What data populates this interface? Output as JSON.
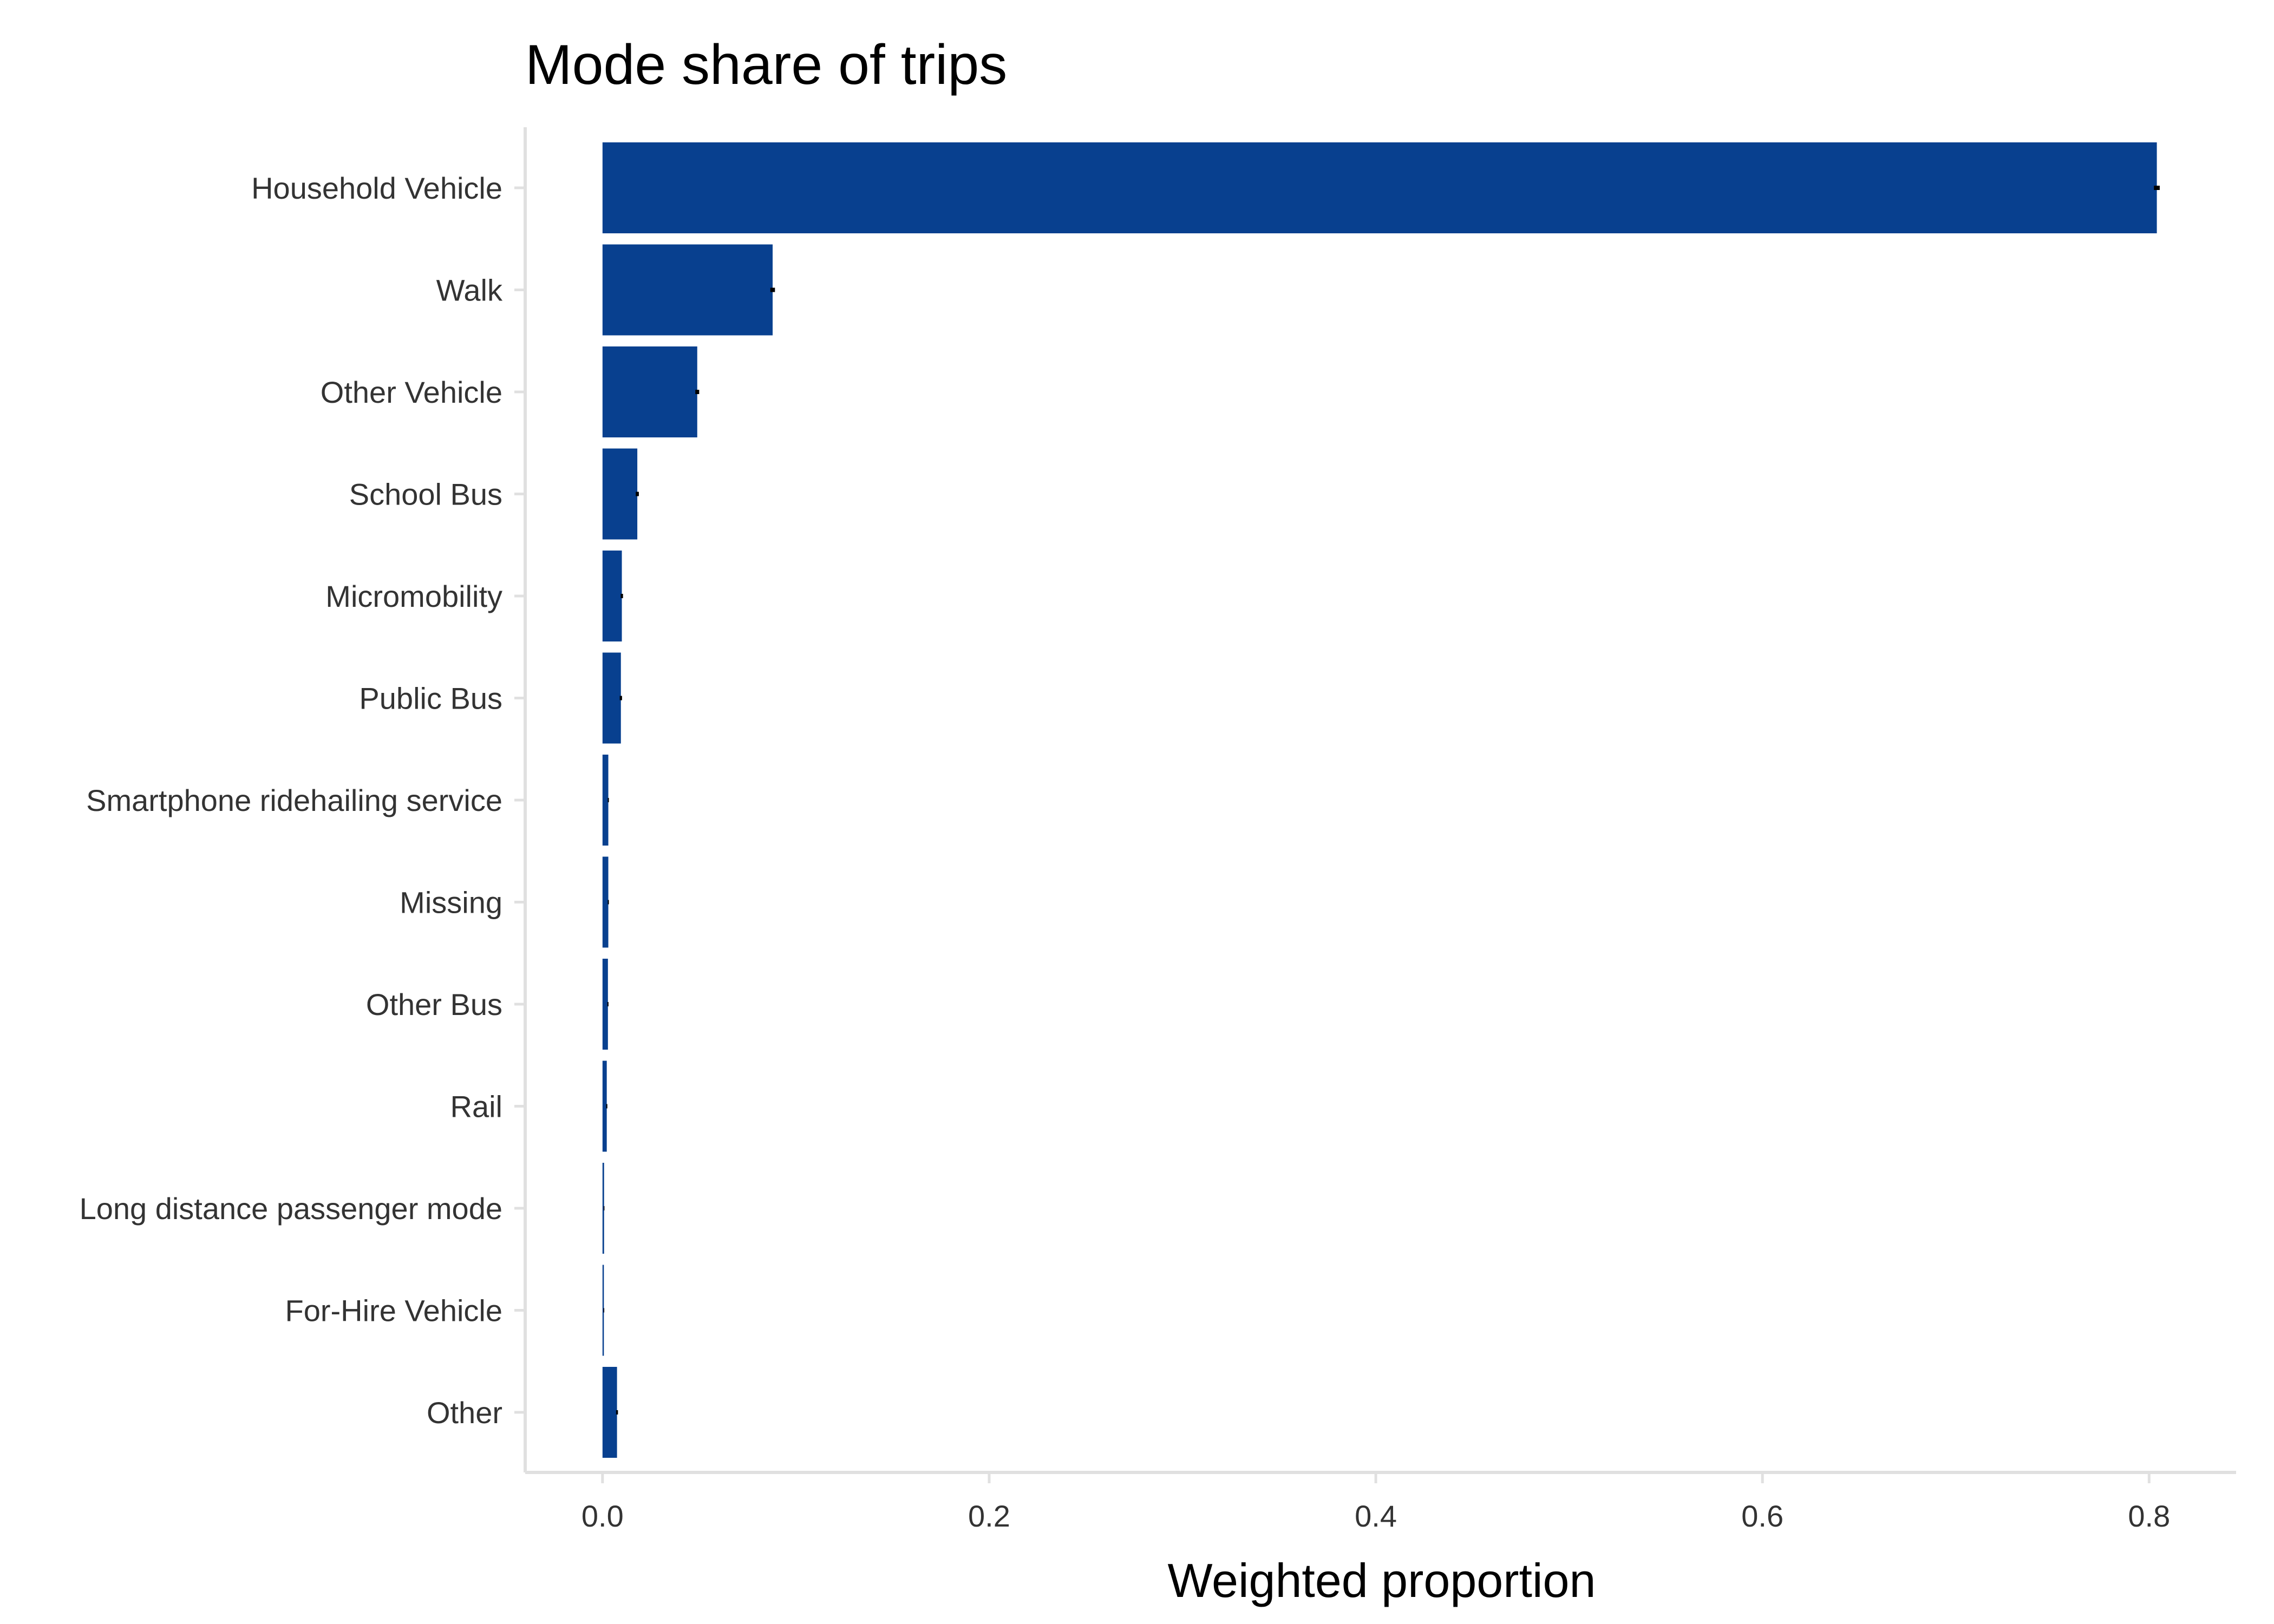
{
  "chart_data": {
    "type": "bar",
    "orientation": "horizontal",
    "title": "Mode share of trips",
    "xlabel": "Weighted proportion",
    "ylabel": "",
    "categories": [
      "Household Vehicle",
      "Walk",
      "Other Vehicle",
      "School Bus",
      "Micromobility",
      "Public Bus",
      "Smartphone ridehailing service",
      "Missing",
      "Other Bus",
      "Rail",
      "Long distance passenger mode",
      "For-Hire Vehicle",
      "Other"
    ],
    "values": [
      0.804,
      0.088,
      0.049,
      0.018,
      0.01,
      0.0095,
      0.003,
      0.003,
      0.0028,
      0.0022,
      0.0008,
      0.0007,
      0.0075
    ],
    "error_half_width": [
      0.0015,
      0.0012,
      0.001,
      0.0008,
      0.0006,
      0.0006,
      0.0003,
      0.0003,
      0.0003,
      0.0003,
      0.0002,
      0.0002,
      0.0005
    ],
    "xlim": [
      -0.04,
      0.845
    ],
    "xticks": [
      0.0,
      0.2,
      0.4,
      0.6,
      0.8
    ],
    "xtick_labels": [
      "0.0",
      "0.2",
      "0.4",
      "0.6",
      "0.8"
    ],
    "bar_color": "#08408f",
    "error_color": "#000000",
    "axis_color": "#e0e0e0",
    "grid": false,
    "legend": "none"
  }
}
